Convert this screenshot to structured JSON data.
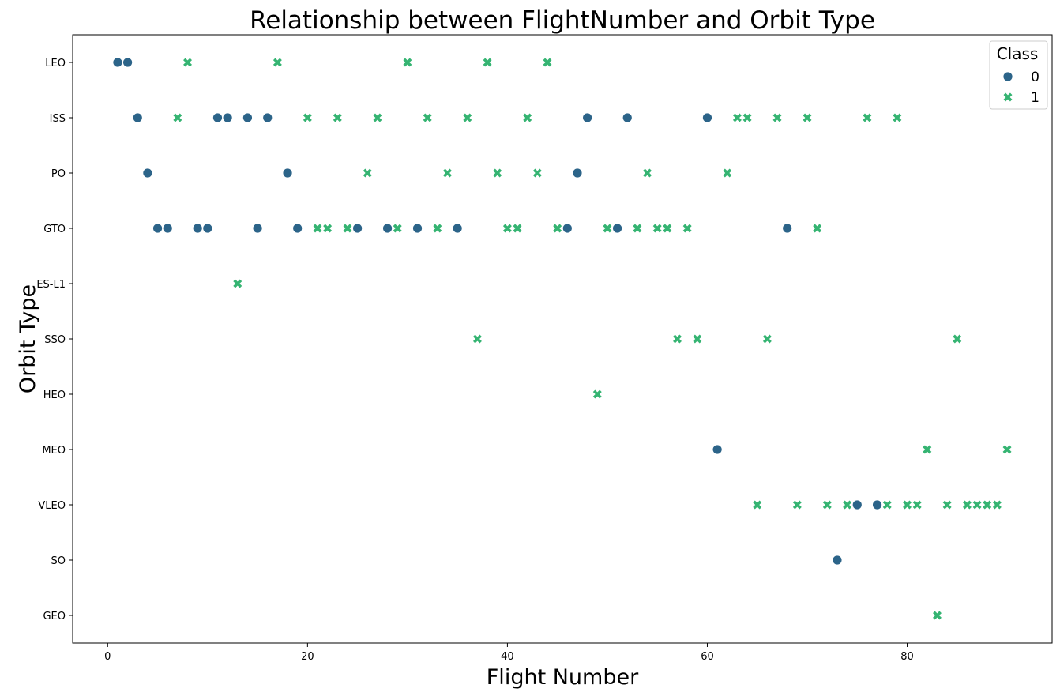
{
  "chart_data": {
    "type": "scatter",
    "title": "Relationship between FlightNumber and Orbit Type",
    "xlabel": "Flight Number",
    "ylabel": "Orbit Type",
    "xlim": [
      -3.5,
      94.5
    ],
    "x_ticks": [
      0,
      20,
      40,
      60,
      80
    ],
    "categories": [
      "LEO",
      "ISS",
      "PO",
      "GTO",
      "ES-L1",
      "SSO",
      "HEO",
      "MEO",
      "VLEO",
      "SO",
      "GEO"
    ],
    "grid": false,
    "legend": {
      "title": "Class",
      "placement": "upper right",
      "entries": [
        {
          "label": "0",
          "marker": "circle",
          "color": "#2c6489"
        },
        {
          "label": "1",
          "marker": "x",
          "color": "#35b472"
        }
      ]
    },
    "series": [
      {
        "name": "0",
        "marker": "circle",
        "color": "#2c6489",
        "points": [
          [
            1,
            "LEO"
          ],
          [
            2,
            "LEO"
          ],
          [
            3,
            "ISS"
          ],
          [
            11,
            "ISS"
          ],
          [
            12,
            "ISS"
          ],
          [
            14,
            "ISS"
          ],
          [
            16,
            "ISS"
          ],
          [
            48,
            "ISS"
          ],
          [
            52,
            "ISS"
          ],
          [
            60,
            "ISS"
          ],
          [
            4,
            "PO"
          ],
          [
            18,
            "PO"
          ],
          [
            47,
            "PO"
          ],
          [
            5,
            "GTO"
          ],
          [
            6,
            "GTO"
          ],
          [
            9,
            "GTO"
          ],
          [
            10,
            "GTO"
          ],
          [
            15,
            "GTO"
          ],
          [
            19,
            "GTO"
          ],
          [
            25,
            "GTO"
          ],
          [
            28,
            "GTO"
          ],
          [
            31,
            "GTO"
          ],
          [
            35,
            "GTO"
          ],
          [
            46,
            "GTO"
          ],
          [
            51,
            "GTO"
          ],
          [
            68,
            "GTO"
          ],
          [
            61,
            "MEO"
          ],
          [
            75,
            "VLEO"
          ],
          [
            77,
            "VLEO"
          ],
          [
            73,
            "SO"
          ]
        ]
      },
      {
        "name": "1",
        "marker": "x",
        "color": "#35b472",
        "points": [
          [
            8,
            "LEO"
          ],
          [
            17,
            "LEO"
          ],
          [
            30,
            "LEO"
          ],
          [
            38,
            "LEO"
          ],
          [
            44,
            "LEO"
          ],
          [
            7,
            "ISS"
          ],
          [
            20,
            "ISS"
          ],
          [
            23,
            "ISS"
          ],
          [
            27,
            "ISS"
          ],
          [
            32,
            "ISS"
          ],
          [
            36,
            "ISS"
          ],
          [
            42,
            "ISS"
          ],
          [
            63,
            "ISS"
          ],
          [
            64,
            "ISS"
          ],
          [
            67,
            "ISS"
          ],
          [
            70,
            "ISS"
          ],
          [
            76,
            "ISS"
          ],
          [
            79,
            "ISS"
          ],
          [
            26,
            "PO"
          ],
          [
            34,
            "PO"
          ],
          [
            39,
            "PO"
          ],
          [
            43,
            "PO"
          ],
          [
            54,
            "PO"
          ],
          [
            62,
            "PO"
          ],
          [
            21,
            "GTO"
          ],
          [
            22,
            "GTO"
          ],
          [
            24,
            "GTO"
          ],
          [
            29,
            "GTO"
          ],
          [
            33,
            "GTO"
          ],
          [
            40,
            "GTO"
          ],
          [
            41,
            "GTO"
          ],
          [
            45,
            "GTO"
          ],
          [
            50,
            "GTO"
          ],
          [
            53,
            "GTO"
          ],
          [
            55,
            "GTO"
          ],
          [
            56,
            "GTO"
          ],
          [
            58,
            "GTO"
          ],
          [
            71,
            "GTO"
          ],
          [
            13,
            "ES-L1"
          ],
          [
            37,
            "SSO"
          ],
          [
            57,
            "SSO"
          ],
          [
            59,
            "SSO"
          ],
          [
            66,
            "SSO"
          ],
          [
            85,
            "SSO"
          ],
          [
            49,
            "HEO"
          ],
          [
            82,
            "MEO"
          ],
          [
            90,
            "MEO"
          ],
          [
            65,
            "VLEO"
          ],
          [
            69,
            "VLEO"
          ],
          [
            72,
            "VLEO"
          ],
          [
            74,
            "VLEO"
          ],
          [
            78,
            "VLEO"
          ],
          [
            80,
            "VLEO"
          ],
          [
            81,
            "VLEO"
          ],
          [
            84,
            "VLEO"
          ],
          [
            86,
            "VLEO"
          ],
          [
            87,
            "VLEO"
          ],
          [
            88,
            "VLEO"
          ],
          [
            89,
            "VLEO"
          ],
          [
            83,
            "GEO"
          ]
        ]
      }
    ]
  }
}
